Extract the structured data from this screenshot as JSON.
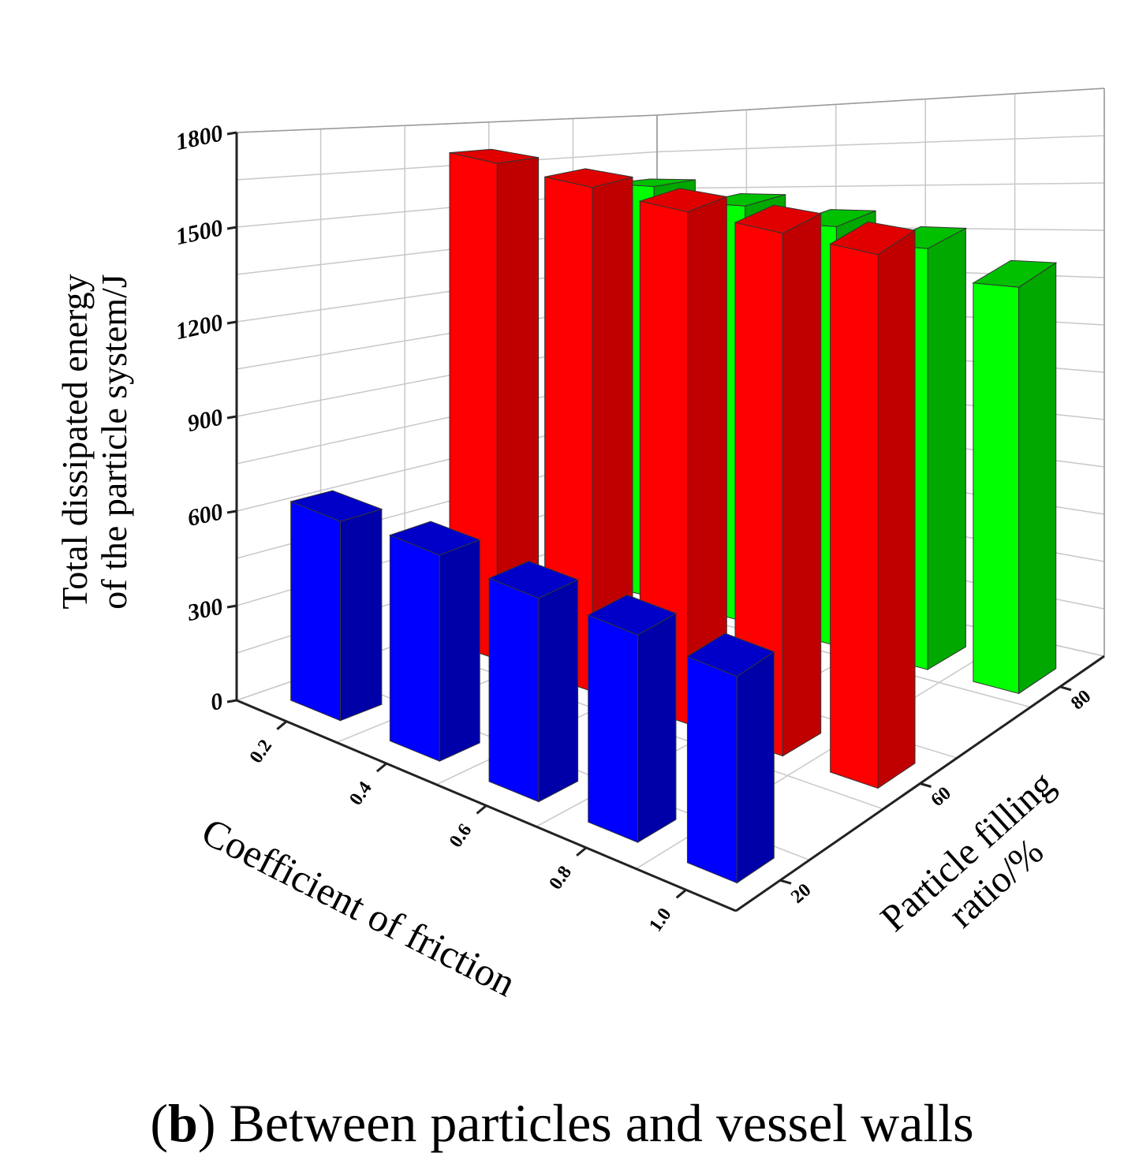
{
  "chart_data": {
    "type": "bar3d",
    "title": "",
    "ylabel_line1": "Total dissipated energy",
    "ylabel_line2": "of the particle system/J",
    "xlabel": "Coefficient of friction",
    "zlabel_line1": "Particle filling",
    "zlabel_line2": "ratio/%",
    "ylim": [
      0,
      1800
    ],
    "yticks": [
      "0",
      "300",
      "600",
      "900",
      "1200",
      "1500",
      "1800"
    ],
    "categories": [
      "0.2",
      "0.4",
      "0.6",
      "0.8",
      "1.0"
    ],
    "series": [
      {
        "name": "20",
        "color": "#0000ff",
        "side": "#0000a8",
        "top": "#0000c8",
        "values": [
          640,
          660,
          650,
          660,
          655
        ]
      },
      {
        "name": "60",
        "color": "#ff0000",
        "side": "#c00000",
        "top": "#e00000",
        "values": [
          1720,
          1710,
          1700,
          1700,
          1700
        ]
      },
      {
        "name": "80",
        "color": "#00ff00",
        "side": "#00a800",
        "top": "#00c000",
        "values": [
          1550,
          1500,
          1450,
          1400,
          1300
        ]
      }
    ],
    "grid": true
  },
  "caption": {
    "label": "b",
    "text": " Between particles and vessel walls"
  }
}
